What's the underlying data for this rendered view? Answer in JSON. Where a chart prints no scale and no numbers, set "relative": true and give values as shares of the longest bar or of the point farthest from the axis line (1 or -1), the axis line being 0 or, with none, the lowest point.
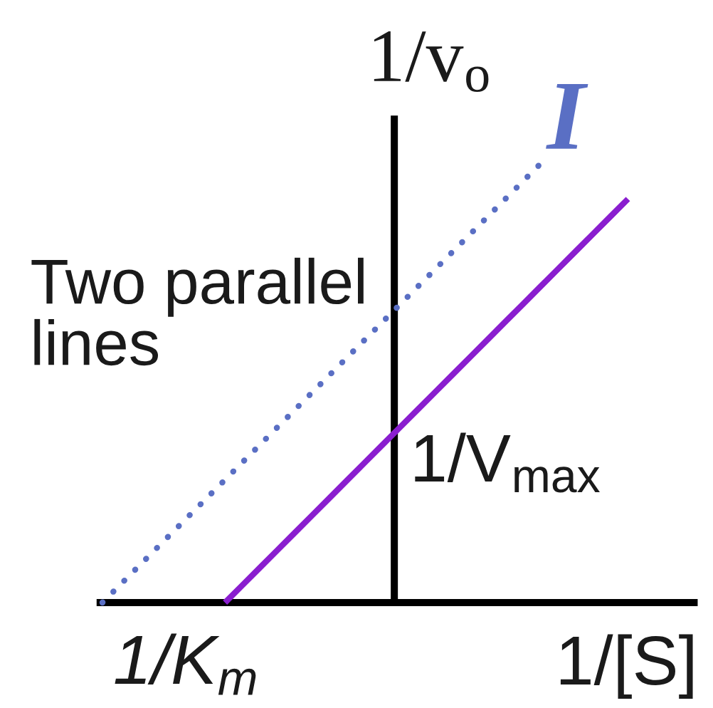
{
  "chart_data": {
    "type": "line",
    "relative": true,
    "xlabel": "1/[S]",
    "ylabel": "1/v$_{o}$",
    "categories": [
      null,
      null,
      null,
      null,
      null,
      null,
      null,
      null,
      null,
      null,
      null,
      null,
      null,
      null,
      null,
      null,
      null,
      null,
      null,
      null,
      null,
      null,
      null,
      null,
      null,
      null,
      null,
      null,
      null,
      null,
      null,
      null,
      null,
      null
    ],
    "series": [
      {
        "name": "I",
        "color": "#5a6fc4",
        "line_style": "dotted",
        "values": [
          0,
          0.04,
          0.08,
          0.12,
          0.16,
          0.2,
          0.24,
          0.28,
          0.32,
          0.36,
          0.4,
          0.44,
          0.48,
          0.52,
          0.56,
          0.6,
          0.64,
          0.68,
          0.72,
          0.76,
          0.8,
          0.84,
          0.88,
          0.92,
          0.96,
          1,
          null,
          null,
          null,
          null,
          null,
          null,
          null,
          null
        ]
      },
      {
        "color": "#8a1ecf",
        "line_style": "solid",
        "values": [
          null,
          null,
          null,
          null,
          null,
          null,
          null,
          0,
          0.04,
          0.08,
          0.12,
          0.16,
          0.2,
          0.24,
          0.28,
          0.32,
          0.36,
          0.4,
          0.44,
          0.48,
          0.52,
          0.56,
          0.6,
          0.64,
          0.68,
          0.72,
          0.76,
          0.8,
          0.84,
          0.88,
          0.92,
          null,
          null,
          null
        ]
      }
    ],
    "annotations": [
      "Two parallel lines",
      "1/K$_{m}$",
      "1/V$_{max}$"
    ]
  }
}
